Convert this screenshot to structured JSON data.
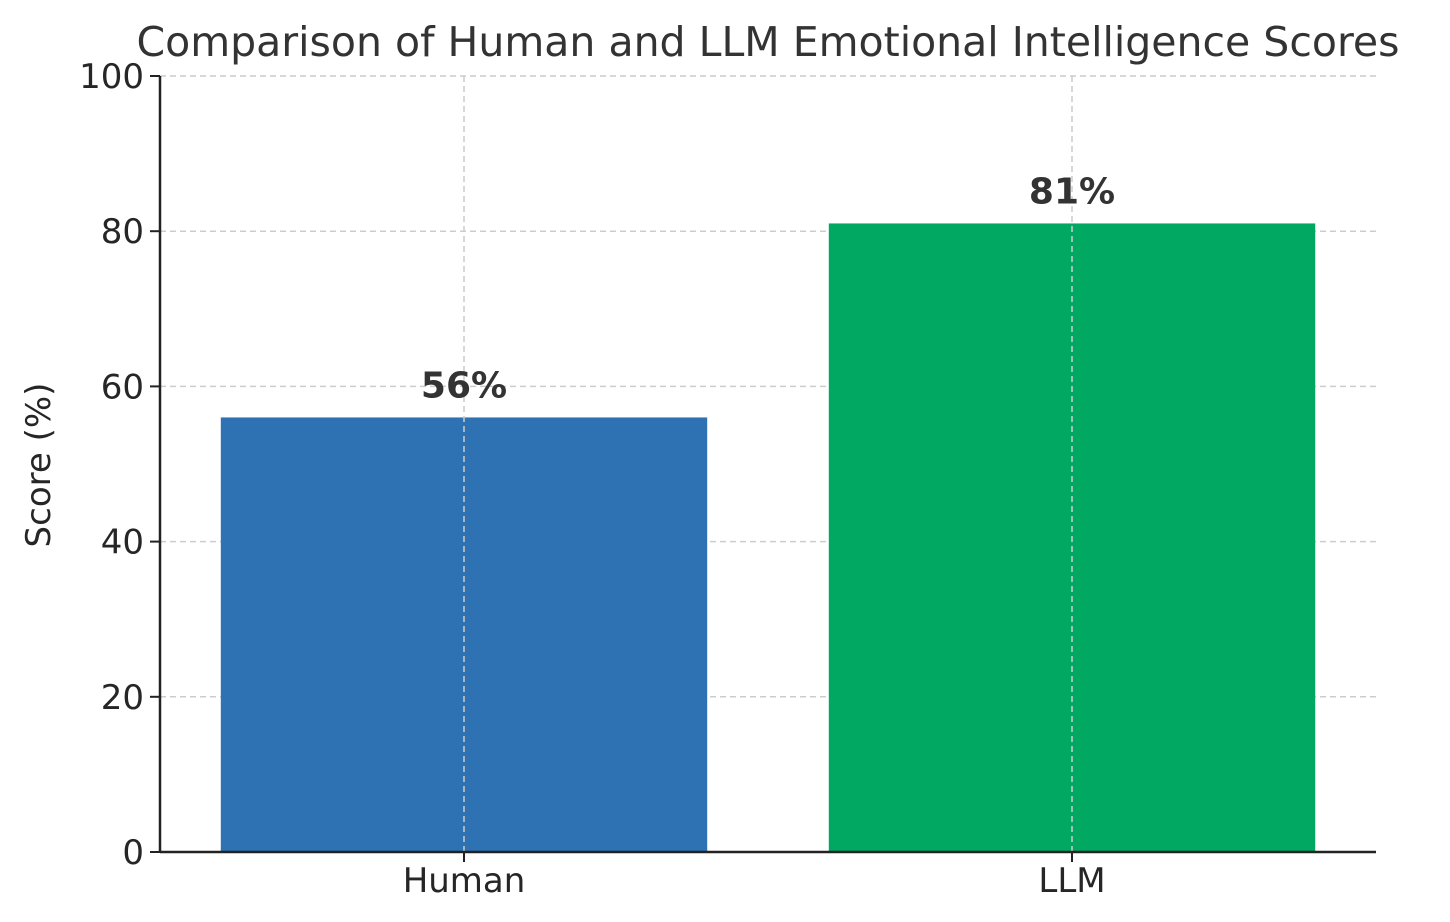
{
  "chart_data": {
    "type": "bar",
    "title": "Comparison of Human and LLM Emotional Intelligence Scores",
    "xlabel": "",
    "ylabel": "Score (%)",
    "categories": [
      "Human",
      "LLM"
    ],
    "values": [
      56,
      81
    ],
    "value_labels": [
      "56%",
      "81%"
    ],
    "colors": [
      "#2f72b4",
      "#00a862"
    ],
    "ylim": [
      0,
      100
    ],
    "yticks": [
      0,
      20,
      40,
      60,
      80,
      100
    ],
    "grid": true
  }
}
